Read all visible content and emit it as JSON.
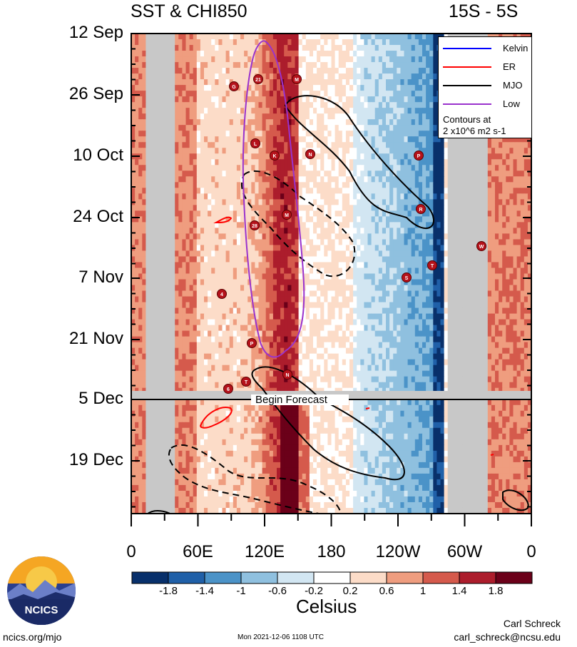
{
  "header": {
    "title_left": "SST & CHI850",
    "title_right": "15S - 5S"
  },
  "chart_data": {
    "type": "heatmap",
    "title": "SST & CHI850",
    "region": "15S - 5S",
    "y_ticks": [
      "12 Sep",
      "26 Sep",
      "10 Oct",
      "24 Oct",
      "7 Nov",
      "21 Nov",
      "5 Dec",
      "19 Dec"
    ],
    "x_ticks": [
      "0",
      "60E",
      "120E",
      "180",
      "120W",
      "60W",
      "0"
    ],
    "x_range": [
      0,
      360
    ],
    "colorbar": {
      "labels": [
        "-1.8",
        "-1.4",
        "-1",
        "-0.6",
        "-0.2",
        "0.2",
        "0.6",
        "1",
        "1.4",
        "1.8"
      ],
      "colors": [
        "#08306b",
        "#2060a8",
        "#4b93c8",
        "#8fc0df",
        "#d2e6f2",
        "#ffffff",
        "#fcdcc8",
        "#ef9d7f",
        "#d55a4c",
        "#ac1d2c",
        "#6b0019"
      ],
      "units": "Celsius"
    },
    "forecast_label": "Begin Forecast",
    "legend": {
      "entries": [
        {
          "name": "Kelvin",
          "color": "#0000ff"
        },
        {
          "name": "ER",
          "color": "#ff0000"
        },
        {
          "name": "MJO",
          "color": "#000000"
        },
        {
          "name": "Low",
          "color": "#9a32cd"
        }
      ],
      "note_line1": "Contours at",
      "note_line2": "2 x10^6 m2 s-1"
    },
    "storm_markers": [
      "G",
      "21",
      "M",
      "L",
      "K",
      "N",
      "P",
      "R",
      "M",
      "28",
      "W",
      "T",
      "S",
      "4",
      "P",
      "N",
      "T",
      "6"
    ]
  },
  "footer": {
    "logo_text": "NCICS",
    "url": "ncics.org/mjo",
    "timestamp": "Mon 2021-12-06 1108 UTC",
    "author": "Carl Schreck",
    "email": "carl_schreck@ncsu.edu"
  }
}
